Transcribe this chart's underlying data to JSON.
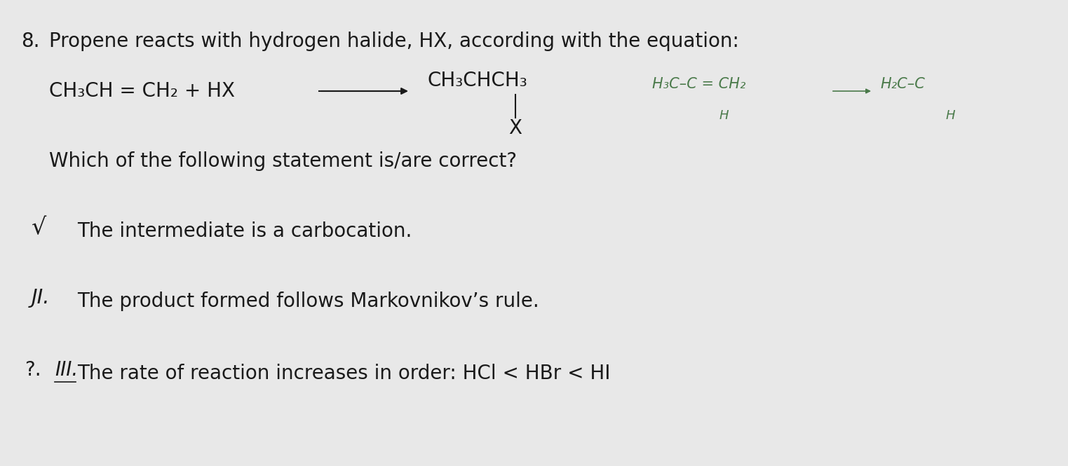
{
  "background_color": "#e8e8e8",
  "title_number": "8.",
  "title_text": "Propene reacts with hydrogen halide, HX, according with the equation:",
  "question": "Which of the following statement is/are correct?",
  "item1_text": "The intermediate is a carbocation.",
  "item2_text": "The product formed follows Markovnikov’s rule.",
  "item3_text": "The rate of reaction increases in order: HCl < HBr < HI",
  "text_color": "#1a1a1a",
  "handwritten_color": "#4a7a4a",
  "font_size_title": 20,
  "font_size_equation": 20,
  "font_size_question": 20,
  "font_size_items": 20
}
